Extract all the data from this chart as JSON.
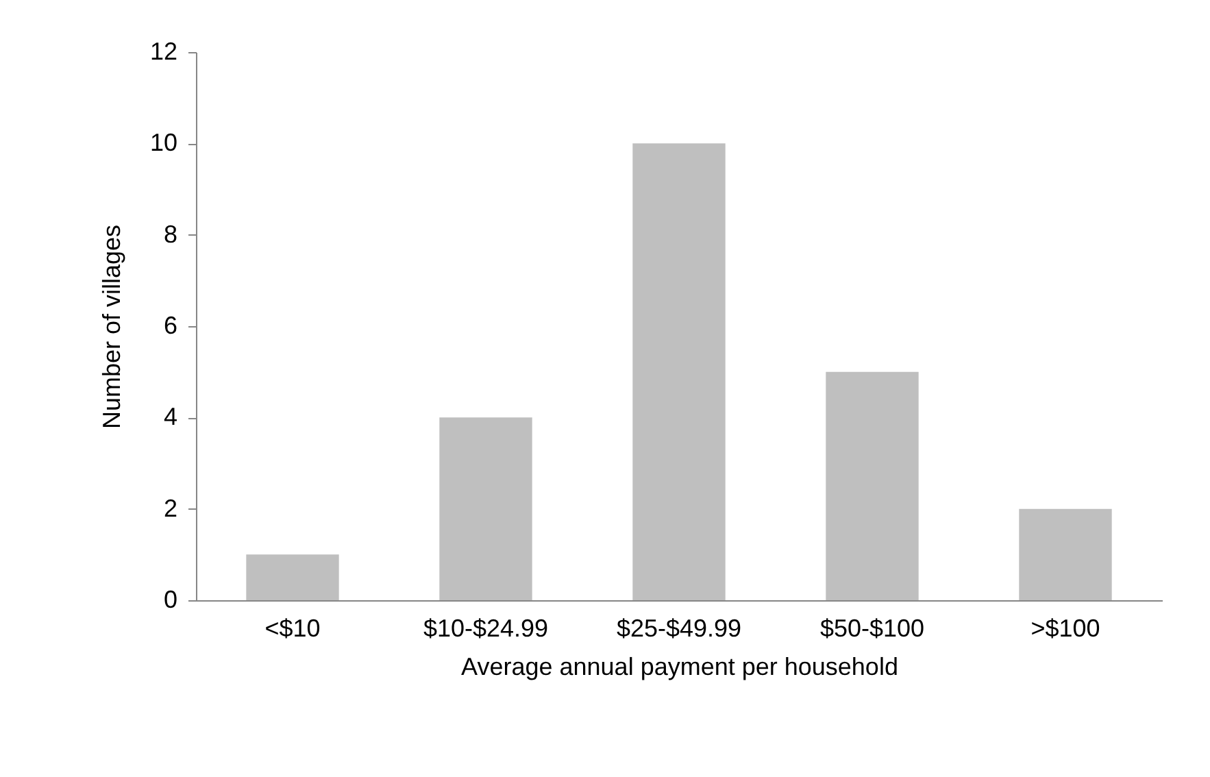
{
  "chart_data": {
    "type": "bar",
    "xlabel": "Average annual payment per household",
    "ylabel": "Number of villages",
    "categories": [
      "<$10",
      "$10-$24.99",
      "$25-$49.99",
      "$50-$100",
      ">$100"
    ],
    "values": [
      1,
      4,
      10,
      5,
      2
    ],
    "color": "#bfbfbf",
    "ylim": [
      0,
      12
    ],
    "yticks": [
      0,
      2,
      4,
      6,
      8,
      10,
      12
    ],
    "grid": false
  }
}
